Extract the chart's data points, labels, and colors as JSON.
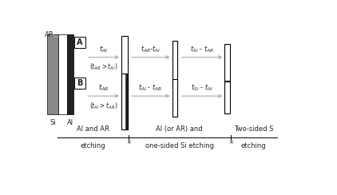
{
  "fig_width": 4.22,
  "fig_height": 2.44,
  "dpi": 100,
  "bg_color": "#ffffff",
  "black": "#000000",
  "gray_dark": "#222222",
  "gray_si": "#888888",
  "gray_light": "#bbbbbb",
  "white": "#ffffff",
  "arrow_labelA1": "$t_{Al}$",
  "arrow_labelA2": "$(t_{AR}>t_{Al})$",
  "arrow_labelA3": "$t_{AR}$-$t_{Al}$",
  "arrow_labelA4": "$t_{Si}$ - $t_{AR}$",
  "arrow_labelB1": "$t_{AR}$",
  "arrow_labelB2": "$(t_{Al}>t_{AR})$",
  "arrow_labelB3": "$t_{Al}$ - $t_{AR}$",
  "arrow_labelB4": "$t_{Si}$ - $t_{Al}$",
  "label_AR": "AR",
  "label_Si": "Si",
  "label_Al": "Al",
  "label_A": "A",
  "label_B": "B",
  "bottom_left1": "Al and AR",
  "bottom_left2": "etching",
  "bottom_mid1": "Al (or AR) and",
  "bottom_mid2": "one-sided Si etching",
  "bottom_right1": "Two-sided S",
  "bottom_right2": "etching"
}
